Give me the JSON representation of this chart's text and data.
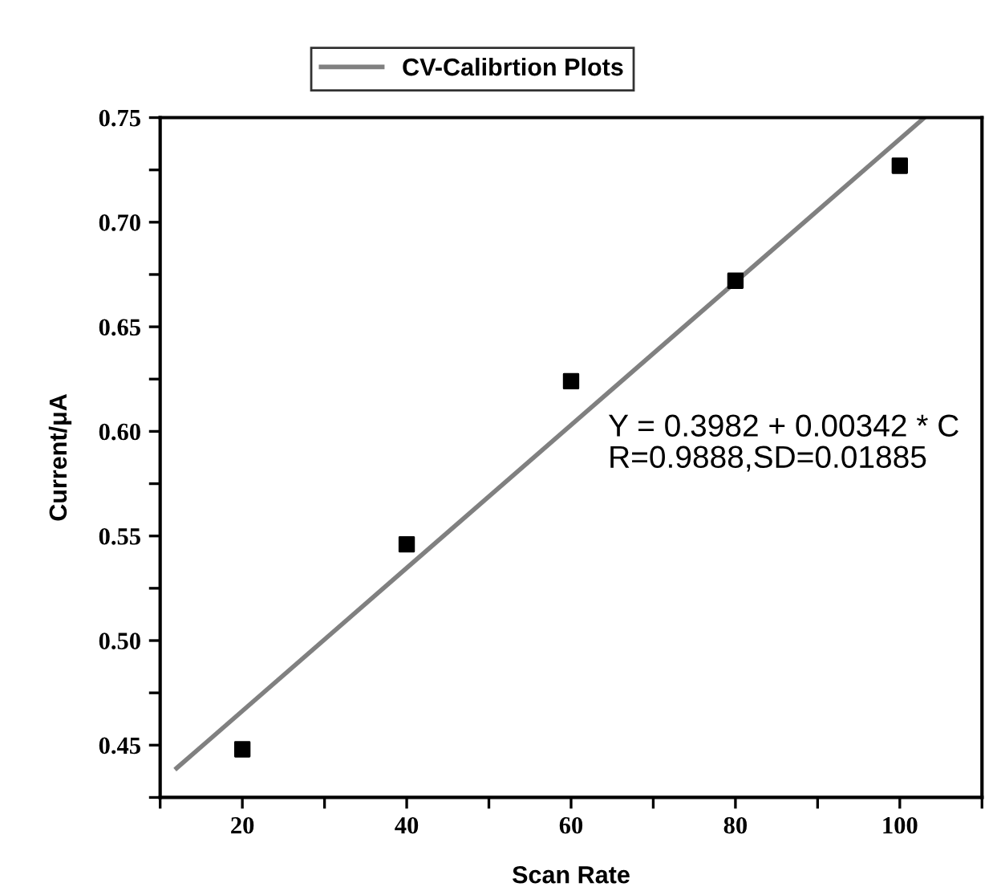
{
  "chart_data": {
    "type": "scatter",
    "xlabel": "Scan Rate",
    "ylabel": "Current/μA",
    "series": [
      {
        "color": "#000000",
        "marker": "square",
        "x": [
          20,
          40,
          60,
          80,
          100
        ],
        "values": [
          0.448,
          0.546,
          0.624,
          0.672,
          0.727
        ]
      },
      {
        "type": "line",
        "name": "CV-Calibrtion Plots",
        "color": "#808080",
        "x": [
          12,
          103
        ],
        "values": [
          0.439,
          0.75
        ]
      }
    ],
    "xlim": [
      10,
      110
    ],
    "xticks": [
      {
        "value": 10,
        "label": null
      },
      20,
      {
        "value": 30,
        "label": null
      },
      40,
      {
        "value": 50,
        "label": null
      },
      60,
      {
        "value": 70,
        "label": null
      },
      80,
      {
        "value": 90,
        "label": null
      },
      100,
      {
        "value": 110,
        "label": null
      }
    ],
    "ylim": [
      0.425,
      0.75
    ],
    "yticks": [
      {
        "value": 0.425,
        "label": null
      },
      {
        "value": 0.45,
        "label": "0.45"
      },
      {
        "value": 0.475,
        "label": null
      },
      {
        "value": 0.5,
        "label": "0.50"
      },
      {
        "value": 0.525,
        "label": null
      },
      {
        "value": 0.55,
        "label": "0.55"
      },
      {
        "value": 0.575,
        "label": null
      },
      {
        "value": 0.6,
        "label": "0.60"
      },
      {
        "value": 0.625,
        "label": null
      },
      {
        "value": 0.65,
        "label": "0.65"
      },
      {
        "value": 0.675,
        "label": null
      },
      {
        "value": 0.7,
        "label": "0.70"
      },
      {
        "value": 0.725,
        "label": null
      },
      {
        "value": 0.75,
        "label": "0.75"
      }
    ],
    "annotations": [
      "Y = 0.3982 + 0.00342 * C\nR=0.9888,SD=0.01885"
    ],
    "legend": "top",
    "grid": false
  }
}
